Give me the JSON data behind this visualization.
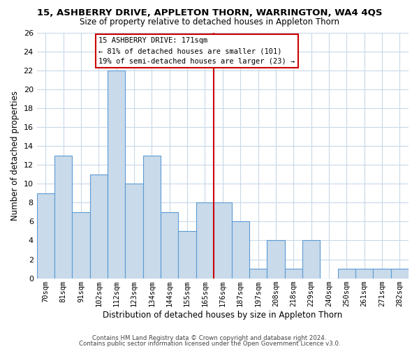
{
  "title": "15, ASHBERRY DRIVE, APPLETON THORN, WARRINGTON, WA4 4QS",
  "subtitle": "Size of property relative to detached houses in Appleton Thorn",
  "xlabel": "Distribution of detached houses by size in Appleton Thorn",
  "ylabel": "Number of detached properties",
  "bar_labels": [
    "70sqm",
    "81sqm",
    "91sqm",
    "102sqm",
    "112sqm",
    "123sqm",
    "134sqm",
    "144sqm",
    "155sqm",
    "165sqm",
    "176sqm",
    "187sqm",
    "197sqm",
    "208sqm",
    "218sqm",
    "229sqm",
    "240sqm",
    "250sqm",
    "261sqm",
    "271sqm",
    "282sqm"
  ],
  "bar_values": [
    9,
    13,
    7,
    11,
    22,
    10,
    13,
    7,
    5,
    8,
    8,
    6,
    1,
    4,
    1,
    4,
    0,
    1,
    1,
    1,
    1
  ],
  "bar_color": "#c9daea",
  "bar_edgecolor": "#5b9bd5",
  "ylim": [
    0,
    26
  ],
  "yticks": [
    0,
    2,
    4,
    6,
    8,
    10,
    12,
    14,
    16,
    18,
    20,
    22,
    24,
    26
  ],
  "property_line_index": 10,
  "property_line_color": "#cc0000",
  "annotation_title": "15 ASHBERRY DRIVE: 171sqm",
  "annotation_line1": "← 81% of detached houses are smaller (101)",
  "annotation_line2": "19% of semi-detached houses are larger (23) →",
  "footer1": "Contains HM Land Registry data © Crown copyright and database right 2024.",
  "footer2": "Contains public sector information licensed under the Open Government Licence v3.0.",
  "background_color": "#ffffff",
  "grid_color": "#c8d8e8"
}
